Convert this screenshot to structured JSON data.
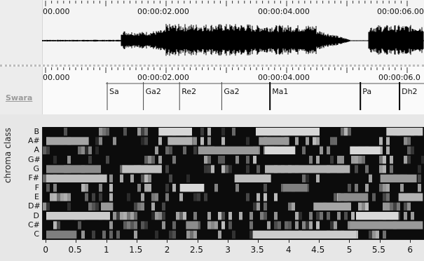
{
  "waveform": {
    "ruler_labels": [
      "00.000",
      "00:00:02.000",
      "00:00:04.000",
      "00:00:06.00"
    ]
  },
  "swara": {
    "track_label": "Swara",
    "ruler_labels": [
      "00.000",
      "00:00:02.000",
      "00:00:04.000",
      "00:00:06.0"
    ],
    "segments": [
      {
        "label": "Sa",
        "start": 1.0,
        "end": 1.6
      },
      {
        "label": "Ga2",
        "start": 1.6,
        "end": 2.2
      },
      {
        "label": "Re2",
        "start": 2.2,
        "end": 2.9
      },
      {
        "label": "Ga2",
        "start": 2.9,
        "end": 3.7
      },
      {
        "label": "Ma1",
        "start": 3.7,
        "end": 5.2
      },
      {
        "label": "Pa",
        "start": 5.2,
        "end": 5.85
      },
      {
        "label": "Dh2",
        "start": 5.85,
        "end": 6.4
      }
    ]
  },
  "chart_data": {
    "type": "heatmap",
    "ylabel": "chroma class",
    "y_categories": [
      "B",
      "A#",
      "A",
      "G#",
      "G",
      "F#",
      "F",
      "E",
      "D#",
      "D",
      "C#",
      "C"
    ],
    "x_ticks": [
      "0",
      "0.5",
      "1",
      "1.5",
      "2",
      "2.5",
      "3",
      "3.5",
      "4",
      "4.5",
      "5",
      "5.5",
      "6"
    ],
    "xlim": [
      0,
      6.2
    ],
    "bright_regions": [
      {
        "pitch": "B",
        "start": 1.85,
        "end": 2.4,
        "level": 0.85
      },
      {
        "pitch": "B",
        "start": 3.45,
        "end": 4.5,
        "level": 0.85
      },
      {
        "pitch": "B",
        "start": 5.6,
        "end": 6.2,
        "level": 0.8
      },
      {
        "pitch": "A#",
        "start": 0.0,
        "end": 0.7,
        "level": 0.65
      },
      {
        "pitch": "A#",
        "start": 2.0,
        "end": 2.4,
        "level": 0.7
      },
      {
        "pitch": "A#",
        "start": 3.5,
        "end": 4.0,
        "level": 0.6
      },
      {
        "pitch": "A",
        "start": 2.5,
        "end": 3.5,
        "level": 0.6
      },
      {
        "pitch": "A",
        "start": 3.6,
        "end": 4.1,
        "level": 0.85
      },
      {
        "pitch": "A",
        "start": 5.0,
        "end": 5.5,
        "level": 0.85
      },
      {
        "pitch": "G",
        "start": 1.25,
        "end": 1.9,
        "level": 0.75
      },
      {
        "pitch": "G",
        "start": 3.6,
        "end": 5.0,
        "level": 0.7
      },
      {
        "pitch": "G",
        "start": 0.0,
        "end": 0.9,
        "level": 0.55
      },
      {
        "pitch": "F#",
        "start": 0.0,
        "end": 1.0,
        "level": 0.75
      },
      {
        "pitch": "F#",
        "start": 3.1,
        "end": 3.7,
        "level": 0.75
      },
      {
        "pitch": "F#",
        "start": 5.5,
        "end": 6.1,
        "level": 0.6
      },
      {
        "pitch": "F",
        "start": 2.2,
        "end": 2.6,
        "level": 0.85
      },
      {
        "pitch": "F",
        "start": 3.9,
        "end": 4.3,
        "level": 0.5
      },
      {
        "pitch": "E",
        "start": 4.8,
        "end": 5.3,
        "level": 0.55
      },
      {
        "pitch": "E",
        "start": 5.8,
        "end": 6.2,
        "level": 0.7
      },
      {
        "pitch": "D#",
        "start": 0.9,
        "end": 1.1,
        "level": 0.6
      },
      {
        "pitch": "D#",
        "start": 4.4,
        "end": 5.0,
        "level": 0.65
      },
      {
        "pitch": "D",
        "start": 0.0,
        "end": 1.05,
        "level": 0.8
      },
      {
        "pitch": "D",
        "start": 5.1,
        "end": 5.8,
        "level": 0.85
      },
      {
        "pitch": "C#",
        "start": 5.0,
        "end": 6.2,
        "level": 0.6
      },
      {
        "pitch": "C#",
        "start": 2.3,
        "end": 2.5,
        "level": 0.55
      },
      {
        "pitch": "C",
        "start": 3.4,
        "end": 5.1,
        "level": 0.8
      },
      {
        "pitch": "C",
        "start": 0.0,
        "end": 0.5,
        "level": 0.5
      }
    ]
  }
}
